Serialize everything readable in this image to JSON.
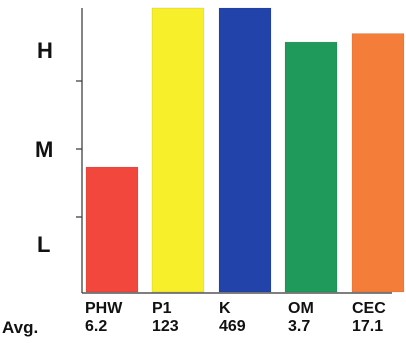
{
  "chart_data": {
    "type": "bar",
    "categories": [
      "PHW",
      "P1",
      "K",
      "OM",
      "CEC"
    ],
    "category_values": [
      "6.2",
      "123",
      "469",
      "3.7",
      "17.1"
    ],
    "values": [
      0.44,
      1.0,
      1.0,
      0.88,
      0.91
    ],
    "colors": [
      "#f2473d",
      "#f7ef2a",
      "#2244aa",
      "#1f9a5a",
      "#f57d3a"
    ],
    "ylim": [
      0,
      1
    ],
    "y_level_labels": [
      "H",
      "M",
      "L"
    ],
    "row_label": "Avg.",
    "grid": false
  }
}
